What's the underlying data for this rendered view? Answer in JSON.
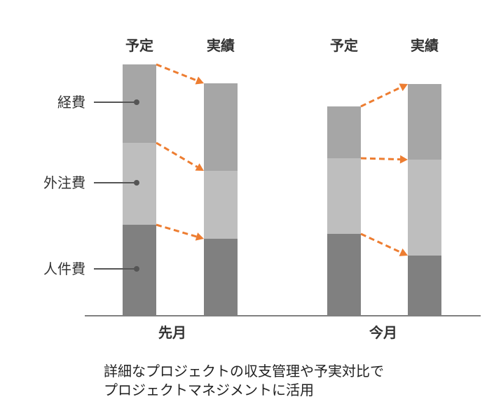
{
  "chart_data": {
    "type": "bar",
    "stacked": true,
    "groups": [
      {
        "label": "先月",
        "bars": [
          {
            "label": "予定",
            "stack": [
              130,
              117,
              112
            ]
          },
          {
            "label": "実績",
            "stack": [
              110,
              97,
              125
            ]
          }
        ]
      },
      {
        "label": "今月",
        "bars": [
          {
            "label": "予定",
            "stack": [
              117,
              108,
              74
            ]
          },
          {
            "label": "実績",
            "stack": [
              86,
              137,
              108
            ]
          }
        ]
      }
    ],
    "series": [
      {
        "name": "人件費",
        "color": "#808080"
      },
      {
        "name": "外注費",
        "color": "#bebebe"
      },
      {
        "name": "経費",
        "color": "#a6a6a6"
      }
    ],
    "connector_color": "#ed7d31",
    "ylim": [
      0,
      360
    ],
    "grid": false
  },
  "caption": {
    "line1": "詳細なプロジェクトの収支管理や予実対比で",
    "line2": "プロジェクトマネジメントに活用"
  }
}
